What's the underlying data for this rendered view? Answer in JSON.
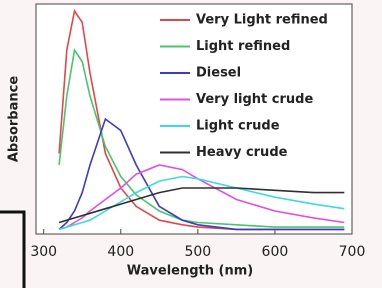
{
  "chart_data": {
    "type": "line",
    "x_label": "Wavelength (nm)",
    "y_label": "Absorbance",
    "x": [
      320,
      330,
      340,
      350,
      360,
      380,
      400,
      420,
      450,
      480,
      500,
      550,
      600,
      650,
      690
    ],
    "series": [
      {
        "name": "Very Light refined",
        "color": "#e0474c",
        "values": [
          0.35,
          0.8,
          0.97,
          0.92,
          0.7,
          0.35,
          0.2,
          0.12,
          0.06,
          0.04,
          0.03,
          0.02,
          0.02,
          0.02,
          0.02
        ]
      },
      {
        "name": "Light refined",
        "color": "#4cc46c",
        "values": [
          0.3,
          0.6,
          0.8,
          0.75,
          0.6,
          0.38,
          0.25,
          0.17,
          0.1,
          0.06,
          0.05,
          0.04,
          0.03,
          0.03,
          0.03
        ]
      },
      {
        "name": "Diesel",
        "color": "#3c3cc0",
        "values": [
          0.02,
          0.05,
          0.1,
          0.18,
          0.3,
          0.5,
          0.45,
          0.3,
          0.12,
          0.06,
          0.04,
          0.02,
          0.02,
          0.02,
          0.02
        ]
      },
      {
        "name": "Very light crude",
        "color": "#e050e0",
        "values": [
          0.02,
          0.03,
          0.05,
          0.07,
          0.1,
          0.15,
          0.2,
          0.26,
          0.3,
          0.28,
          0.24,
          0.15,
          0.1,
          0.07,
          0.05
        ]
      },
      {
        "name": "Light crude",
        "color": "#40d8e0",
        "values": [
          0.02,
          0.03,
          0.04,
          0.05,
          0.06,
          0.1,
          0.14,
          0.18,
          0.23,
          0.25,
          0.24,
          0.2,
          0.16,
          0.13,
          0.11
        ]
      },
      {
        "name": "Heavy crude",
        "color": "#303030",
        "values": [
          0.05,
          0.06,
          0.07,
          0.08,
          0.09,
          0.11,
          0.13,
          0.15,
          0.18,
          0.2,
          0.2,
          0.2,
          0.19,
          0.18,
          0.18
        ]
      }
    ],
    "xlim": [
      290,
      700
    ],
    "xticks": [
      300,
      400,
      500,
      600,
      700
    ],
    "ylim": [
      0,
      1
    ],
    "legend": "upper right"
  }
}
